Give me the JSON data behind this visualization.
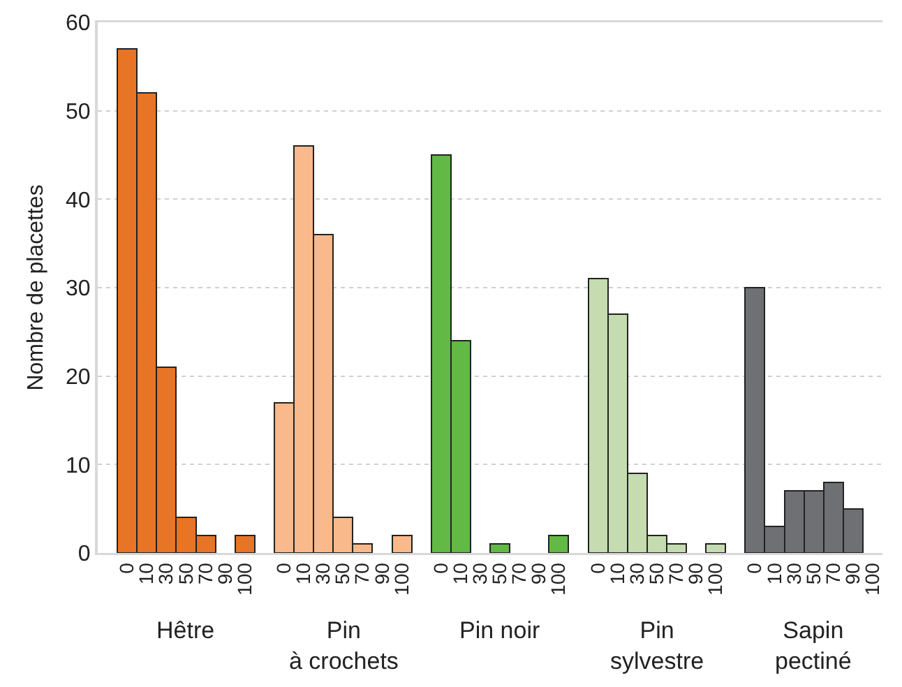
{
  "chart_data": {
    "type": "bar",
    "ylabel": "Nombre de placettes",
    "stacked": true,
    "categories": [
      "0",
      "10",
      "30",
      "50",
      "70",
      "90",
      "100",
      null,
      "0",
      "10",
      "30",
      "50",
      "70",
      "90",
      "100",
      null,
      "0",
      "10",
      "30",
      "50",
      "70",
      "90",
      "100",
      null,
      "0",
      "10",
      "30",
      "50",
      "70",
      "90",
      "100",
      null,
      "0",
      "10",
      "30",
      "50",
      "70",
      "90",
      "100"
    ],
    "series": [
      {
        "name": "Hêtre",
        "color": "#e87425",
        "values": [
          57,
          52,
          21,
          4,
          2,
          0,
          2,
          null,
          null,
          null,
          null,
          null,
          null,
          null,
          null,
          null,
          null,
          null,
          null,
          null,
          null,
          null,
          null,
          null,
          null,
          null,
          null,
          null,
          null,
          null,
          null,
          null,
          null,
          null,
          null,
          null,
          null,
          null,
          null
        ]
      },
      {
        "name": "Pin\nà crochets",
        "color": "#f9b98a",
        "values": [
          null,
          null,
          null,
          null,
          null,
          null,
          null,
          null,
          17,
          46,
          36,
          4,
          1,
          0,
          2,
          null,
          null,
          null,
          null,
          null,
          null,
          null,
          null,
          null,
          null,
          null,
          null,
          null,
          null,
          null,
          null,
          null,
          null,
          null,
          null,
          null,
          null,
          null,
          null
        ]
      },
      {
        "name": "Pin noir",
        "color": "#62b946",
        "values": [
          null,
          null,
          null,
          null,
          null,
          null,
          null,
          null,
          null,
          null,
          null,
          null,
          null,
          null,
          null,
          null,
          45,
          24,
          0,
          1,
          0,
          0,
          2,
          null,
          null,
          null,
          null,
          null,
          null,
          null,
          null,
          null,
          null,
          null,
          null,
          null,
          null,
          null,
          null
        ]
      },
      {
        "name": "Pin\nsylvestre",
        "color": "#c5dbb0",
        "values": [
          null,
          null,
          null,
          null,
          null,
          null,
          null,
          null,
          null,
          null,
          null,
          null,
          null,
          null,
          null,
          null,
          null,
          null,
          null,
          null,
          null,
          null,
          null,
          null,
          31,
          27,
          9,
          2,
          1,
          0,
          1,
          null,
          null,
          null,
          null,
          null,
          null,
          null,
          null
        ]
      },
      {
        "name": "Sapin\npectiné",
        "color": "#6f7073",
        "values": [
          null,
          null,
          null,
          null,
          null,
          null,
          null,
          null,
          null,
          null,
          null,
          null,
          null,
          null,
          null,
          null,
          null,
          null,
          null,
          null,
          null,
          null,
          null,
          null,
          null,
          null,
          null,
          null,
          null,
          null,
          null,
          null,
          30,
          3,
          7,
          7,
          8,
          5,
          0
        ]
      }
    ],
    "ylim": [
      0,
      60
    ],
    "yticks": [
      0,
      10,
      20,
      30,
      40,
      50,
      60
    ],
    "grid": "y",
    "legend": false
  }
}
